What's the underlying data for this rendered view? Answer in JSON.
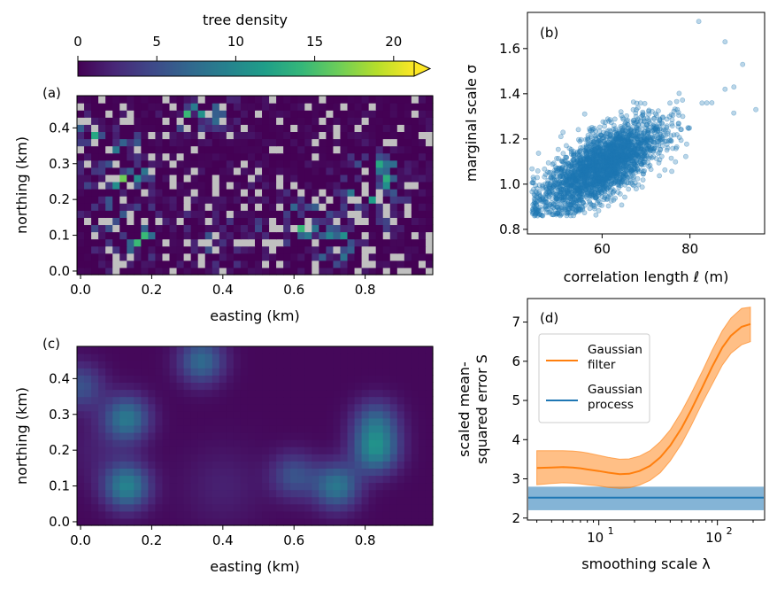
{
  "colorbar": {
    "label": "tree density",
    "min": 0,
    "max": 21.3,
    "ticks": [
      "0",
      "5",
      "10",
      "15",
      "20"
    ],
    "tick_values": [
      0,
      5,
      10,
      15,
      20
    ],
    "extend": "max",
    "colormap": [
      "#440154",
      "#482878",
      "#3e4989",
      "#31688e",
      "#26828e",
      "#1f9e89",
      "#35b779",
      "#6ece58",
      "#b5de2b",
      "#fde725"
    ]
  },
  "missing_color": "#c0c0c0",
  "chart_data": [
    {
      "id": "a",
      "type": "heatmap",
      "panel_label": "(a)",
      "xlabel": "easting (km)",
      "ylabel": "northing (km)",
      "xlim": [
        -0.01,
        0.99
      ],
      "ylim": [
        -0.01,
        0.49
      ],
      "xticks": [
        "0.0",
        "0.2",
        "0.4",
        "0.6",
        "0.8"
      ],
      "xtick_values": [
        0.0,
        0.2,
        0.4,
        0.6,
        0.8
      ],
      "yticks": [
        "0.0",
        "0.1",
        "0.2",
        "0.3",
        "0.4"
      ],
      "ytick_values": [
        0.0,
        0.1,
        0.2,
        0.3,
        0.4
      ],
      "grid_cols": 50,
      "grid_rows": 25,
      "cell_size_km": 0.02,
      "missing_fraction": 0.14,
      "hotspots": [
        {
          "x": 0.13,
          "y": 0.1,
          "value": 9
        },
        {
          "x": 0.13,
          "y": 0.29,
          "value": 8
        },
        {
          "x": 0.34,
          "y": 0.45,
          "value": 7
        },
        {
          "x": 0.72,
          "y": 0.1,
          "value": 8
        },
        {
          "x": 0.83,
          "y": 0.2,
          "value": 9
        },
        {
          "x": 0.83,
          "y": 0.28,
          "value": 6
        },
        {
          "x": 0.6,
          "y": 0.13,
          "value": 5
        },
        {
          "x": 0.0,
          "y": 0.38,
          "value": 5
        }
      ]
    },
    {
      "id": "b",
      "type": "scatter",
      "panel_label": "(b)",
      "xlabel": "correlation length ℓ (m)",
      "ylabel": "marginal scale σ",
      "xlim": [
        43,
        97
      ],
      "ylim": [
        0.78,
        1.76
      ],
      "xticks": [
        "60",
        "80"
      ],
      "xtick_values": [
        60,
        80
      ],
      "yticks": [
        "0.8",
        "1.0",
        "1.2",
        "1.4",
        "1.6"
      ],
      "ytick_values": [
        0.8,
        1.0,
        1.2,
        1.4,
        1.6
      ],
      "color": "#1f77b4",
      "n_points": 2500,
      "mean": [
        60,
        1.08
      ],
      "sd": [
        7,
        0.1
      ],
      "correlation": 0.7,
      "outliers": [
        [
          82,
          1.72
        ],
        [
          88,
          1.63
        ],
        [
          92,
          1.53
        ],
        [
          95,
          1.33
        ],
        [
          90,
          1.43
        ],
        [
          85,
          1.36
        ],
        [
          88,
          1.42
        ]
      ]
    },
    {
      "id": "c",
      "type": "heatmap",
      "panel_label": "(c)",
      "xlabel": "easting (km)",
      "ylabel": "northing (km)",
      "xlim": [
        -0.01,
        0.99
      ],
      "ylim": [
        -0.01,
        0.49
      ],
      "xticks": [
        "0.0",
        "0.2",
        "0.4",
        "0.6",
        "0.8"
      ],
      "xtick_values": [
        0.0,
        0.2,
        0.4,
        0.6,
        0.8
      ],
      "yticks": [
        "0.0",
        "0.1",
        "0.2",
        "0.3",
        "0.4"
      ],
      "ytick_values": [
        0.0,
        0.1,
        0.2,
        0.3,
        0.4
      ],
      "grid_cols": 50,
      "grid_rows": 25,
      "cell_size_km": 0.02
    },
    {
      "id": "d",
      "type": "line",
      "panel_label": "(d)",
      "xlabel": "smoothing scale λ",
      "ylabel": [
        "scaled mean-",
        "squared error S"
      ],
      "xscale": "log",
      "xlim": [
        2.5,
        250
      ],
      "ylim": [
        1.95,
        7.6
      ],
      "xticks": [
        {
          "base": "10",
          "exp": "1",
          "value": 10
        },
        {
          "base": "10",
          "exp": "2",
          "value": 100
        }
      ],
      "yticks": [
        "2",
        "3",
        "4",
        "5",
        "6",
        "7"
      ],
      "ytick_values": [
        2,
        3,
        4,
        5,
        6,
        7
      ],
      "legend_position": "upper-left",
      "series": [
        {
          "name": [
            "Gaussian",
            "filter"
          ],
          "color": "#ff7f0e",
          "x": [
            3,
            4,
            5,
            6,
            7,
            8,
            10,
            12,
            15,
            18,
            22,
            27,
            33,
            40,
            50,
            60,
            75,
            90,
            110,
            130,
            160,
            190
          ],
          "y": [
            3.28,
            3.29,
            3.3,
            3.29,
            3.27,
            3.24,
            3.2,
            3.16,
            3.12,
            3.13,
            3.2,
            3.33,
            3.55,
            3.85,
            4.3,
            4.75,
            5.35,
            5.85,
            6.35,
            6.65,
            6.88,
            6.95
          ],
          "lower": [
            2.85,
            2.88,
            2.9,
            2.89,
            2.87,
            2.85,
            2.82,
            2.78,
            2.76,
            2.77,
            2.84,
            2.96,
            3.16,
            3.46,
            3.9,
            4.35,
            4.95,
            5.4,
            5.9,
            6.2,
            6.42,
            6.5
          ],
          "upper": [
            3.72,
            3.72,
            3.72,
            3.71,
            3.69,
            3.66,
            3.6,
            3.55,
            3.5,
            3.51,
            3.58,
            3.72,
            3.95,
            4.25,
            4.72,
            5.17,
            5.76,
            6.27,
            6.78,
            7.1,
            7.35,
            7.38
          ]
        },
        {
          "name": [
            "Gaussian",
            "process"
          ],
          "color": "#1f77b4",
          "y": 2.52,
          "lower": 2.2,
          "upper": 2.8
        }
      ]
    }
  ]
}
